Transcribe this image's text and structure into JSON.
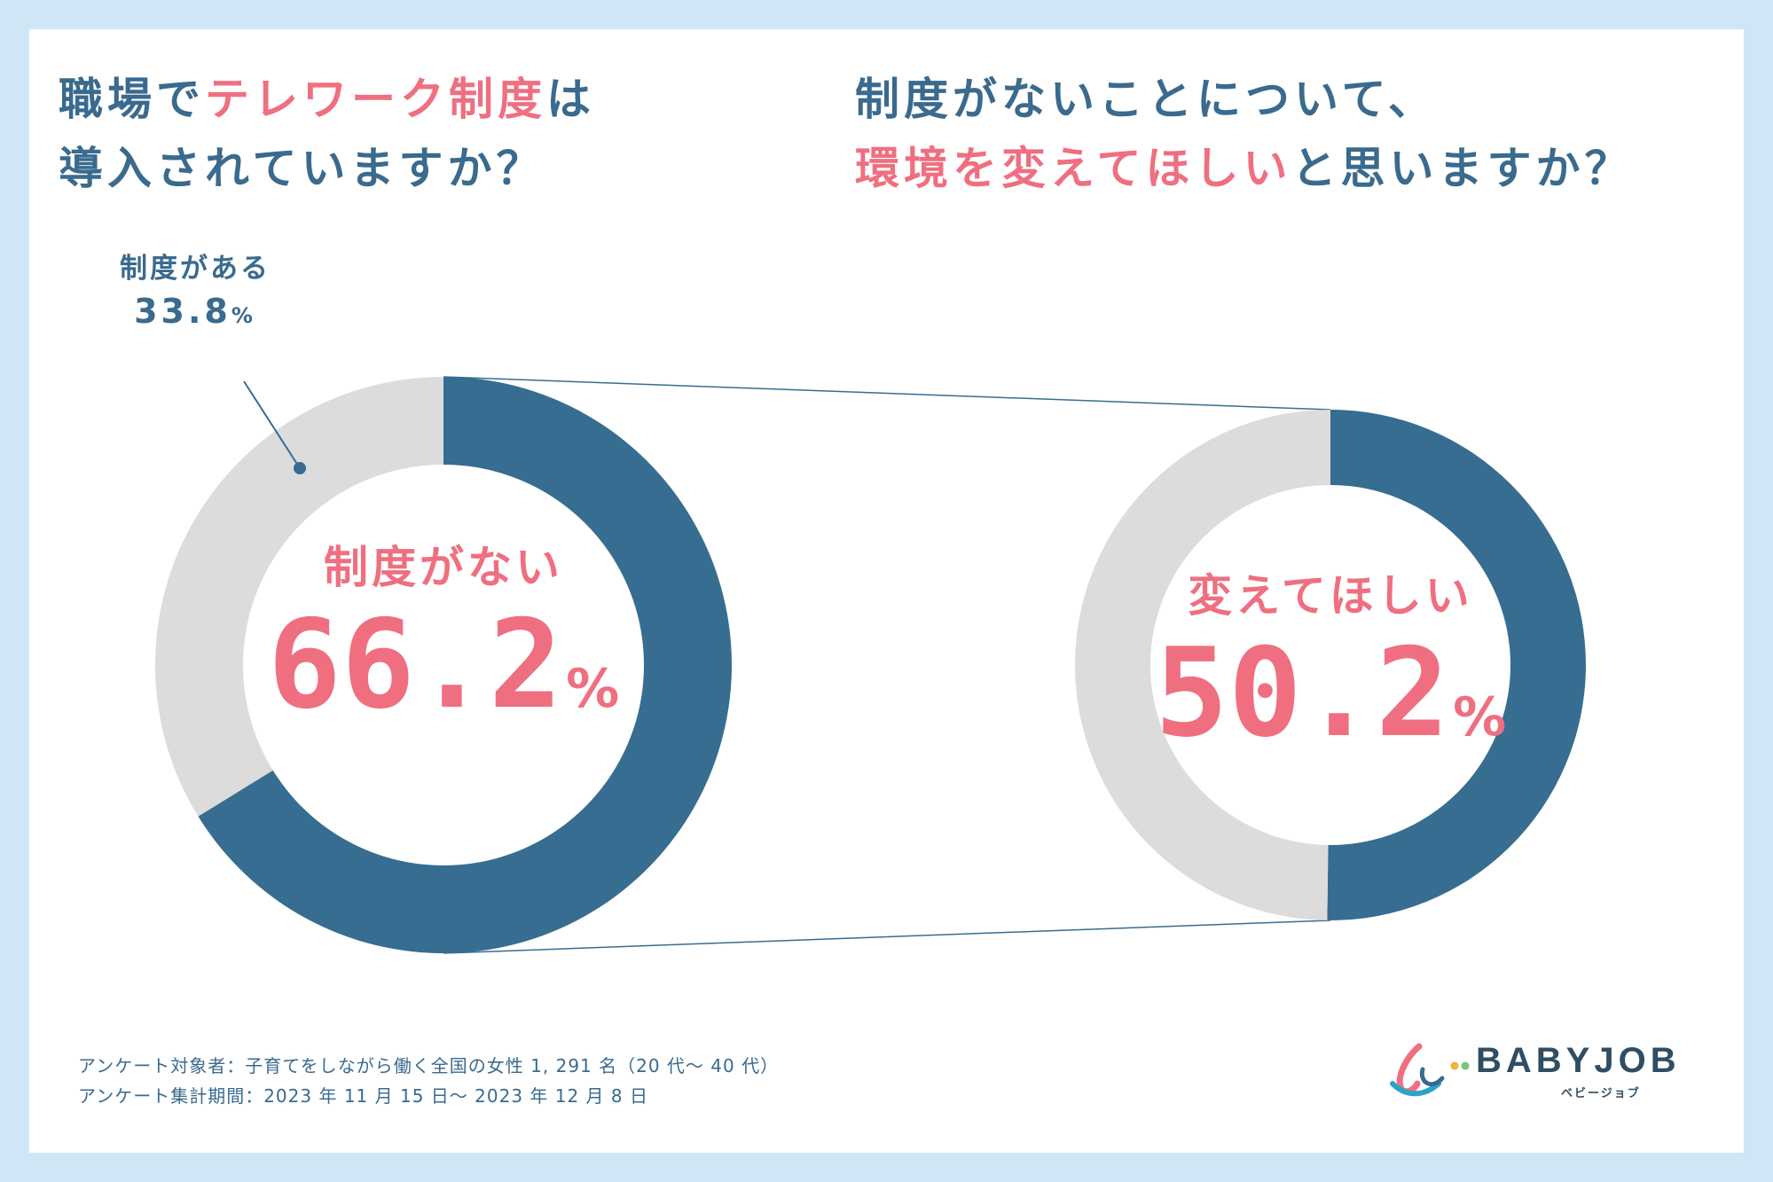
{
  "colors": {
    "background": "#cfe6f7",
    "navy": "#3a6a8e",
    "pink": "#ef6f80",
    "donut_blue": "#376d91",
    "donut_gray": "#dcdcdc"
  },
  "questions": {
    "left": {
      "line1_a": "職場で",
      "line1_b": "テレワーク制度",
      "line1_c": "は",
      "line2": "導入されていますか？"
    },
    "right": {
      "line1": "制度がないことについて、",
      "line2_a": "環境を変えてほしい",
      "line2_b": "と思いますか？"
    }
  },
  "chart_data": [
    {
      "type": "pie",
      "categories": [
        "制度がない",
        "制度がある"
      ],
      "values": [
        66.2,
        33.8
      ],
      "center_label": "制度がない",
      "center_value": "66.2",
      "center_unit": "%",
      "callout_label": "制度がある",
      "callout_value": "33.8",
      "callout_unit": "%"
    },
    {
      "type": "pie",
      "values": [
        50.2,
        49.8
      ],
      "center_label": "変えてほしい",
      "center_value": "50.2",
      "center_unit": "%"
    }
  ],
  "footer": {
    "line1": "アンケート対象者：子育てをしながら働く全国の女性 1, 291 名（20 代～ 40 代）",
    "line2": "アンケート集計期間：2023 年 11 月 15 日～ 2023 年 12 月 8 日"
  },
  "logo": {
    "wordmark": "BABYJOB",
    "subtitle": "ベビージョブ"
  }
}
